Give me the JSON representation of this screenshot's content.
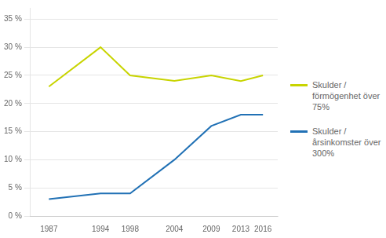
{
  "chart_data": {
    "type": "line",
    "x": [
      1987,
      1994,
      1998,
      2004,
      2009,
      2013,
      2016
    ],
    "series": [
      {
        "name": "Skulder /\nförmögenhet över\n75%",
        "color": "#c8d400",
        "values": [
          23,
          30,
          25,
          24,
          25,
          24,
          25
        ]
      },
      {
        "name": "Skulder /\nårsinkomster över\n300%",
        "color": "#2171b5",
        "values": [
          3,
          4,
          4,
          10,
          16,
          18,
          18
        ]
      }
    ],
    "xlim": [
      1984.5,
      2018
    ],
    "xticks": [
      1987,
      1994,
      1998,
      2004,
      2009,
      2013,
      2016
    ],
    "ylim": [
      0,
      37
    ],
    "yticks": [
      {
        "value": 0,
        "label": "0 %"
      },
      {
        "value": 5,
        "label": "5 %"
      },
      {
        "value": 10,
        "label": "10 %"
      },
      {
        "value": 15,
        "label": "15 %"
      },
      {
        "value": 20,
        "label": "20 %"
      },
      {
        "value": 25,
        "label": "25 %"
      },
      {
        "value": 30,
        "label": "30 %"
      },
      {
        "value": 35,
        "label": "35 %"
      }
    ],
    "grid": "y",
    "legend": "right"
  }
}
